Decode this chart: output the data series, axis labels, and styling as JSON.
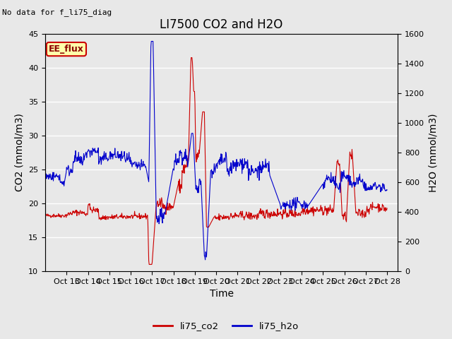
{
  "title": "LI7500 CO2 and H2O",
  "top_left_text": "No data for f_li75_diag",
  "xlabel": "Time",
  "ylabel_left": "CO2 (mmol/m3)",
  "ylabel_right": "H2O (mmol/m3)",
  "ylim_left": [
    10,
    45
  ],
  "ylim_right": [
    0,
    1600
  ],
  "xlim": [
    12.0,
    28.5
  ],
  "yticks_left": [
    10,
    15,
    20,
    25,
    30,
    35,
    40,
    45
  ],
  "yticks_right": [
    0,
    200,
    400,
    600,
    800,
    1000,
    1200,
    1400,
    1600
  ],
  "xtick_positions": [
    13,
    14,
    15,
    16,
    17,
    18,
    19,
    20,
    21,
    22,
    23,
    24,
    25,
    26,
    27,
    28
  ],
  "xtick_labels": [
    "Oct 13",
    "Oct 14",
    "Oct 15",
    "Oct 16",
    "Oct 17",
    "Oct 18",
    "Oct 19",
    "Oct 20",
    "Oct 21",
    "Oct 22",
    "Oct 23",
    "Oct 24",
    "Oct 25",
    "Oct 26",
    "Oct 27",
    "Oct 28"
  ],
  "color_co2": "#cc0000",
  "color_h2o": "#0000cc",
  "legend_label_co2": "li75_co2",
  "legend_label_h2o": "li75_h2o",
  "ee_flux_box_facecolor": "#ffffaa",
  "ee_flux_box_edgecolor": "#cc0000",
  "ee_flux_text": "EE_flux",
  "fig_facecolor": "#e8e8e8",
  "plot_facecolor": "#e8e8e8",
  "grid_color": "#ffffff",
  "title_fontsize": 12,
  "axis_label_fontsize": 10,
  "tick_fontsize": 8,
  "linewidth": 0.8
}
